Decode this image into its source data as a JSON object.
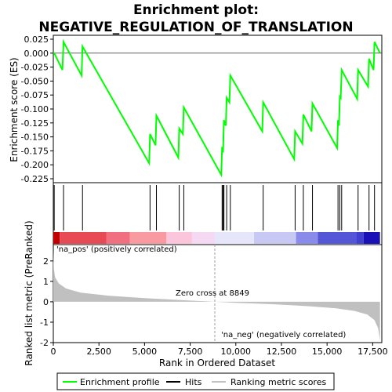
{
  "chart_data": {
    "type": "line",
    "title_lines": [
      "Enrichment plot:",
      "NEGATIVE_REGULATION_OF_TRANSLATION"
    ],
    "xlabel": "Rank in Ordered Dataset",
    "ylabel_top": "Enrichment score (ES)",
    "ylabel_bottom": "Ranked list metric (PreRanked)",
    "xlim": [
      0,
      18000
    ],
    "x_ticks": [
      0,
      2500,
      5000,
      7500,
      10000,
      12500,
      15000,
      17500
    ],
    "x_tick_labels": [
      "0",
      "2,500",
      "5,000",
      "7,500",
      "10,000",
      "12,500",
      "15,000",
      "17,500"
    ],
    "es_ylim": [
      -0.225,
      0.025
    ],
    "es_ticks": [
      0.025,
      0.0,
      -0.025,
      -0.05,
      -0.075,
      -0.1,
      -0.125,
      -0.15,
      -0.175,
      -0.2,
      -0.225
    ],
    "es_tick_labels": [
      "0.025",
      "0.000",
      "-0.025",
      "-0.050",
      "-0.075",
      "-0.100",
      "-0.125",
      "-0.150",
      "-0.175",
      "-0.200",
      "-0.225"
    ],
    "metric_ylim": [
      -2,
      2.8
    ],
    "metric_ticks": [
      2,
      1,
      0,
      -1,
      -2
    ],
    "metric_tick_labels": [
      "2",
      "1",
      "0",
      "-1",
      "-2"
    ],
    "total_genes": 17900,
    "zero_cross": 8849,
    "zero_cross_label": "Zero cross at 8849",
    "pos_label": "'na_pos' (positively correlated)",
    "neg_label": "'na_neg' (negatively correlated)",
    "hits": [
      50,
      560,
      1600,
      5300,
      5650,
      6900,
      7150,
      9250,
      9300,
      9350,
      9500,
      9700,
      11500,
      13250,
      13700,
      14200,
      15600,
      15700,
      15800,
      16700,
      17300,
      17600
    ],
    "enrichment_profile": {
      "x": [
        0,
        50,
        500,
        560,
        1550,
        1600,
        5250,
        5300,
        5600,
        5650,
        6850,
        6900,
        7100,
        7150,
        9200,
        9250,
        9300,
        9350,
        9450,
        9500,
        9650,
        9700,
        11450,
        11500,
        13200,
        13250,
        13650,
        13700,
        14150,
        14200,
        15550,
        15600,
        15650,
        15700,
        15750,
        15800,
        16650,
        16700,
        17250,
        17300,
        17550,
        17600,
        17900
      ],
      "y": [
        0.0,
        0.0,
        -0.03,
        0.02,
        -0.04,
        0.012,
        -0.197,
        -0.145,
        -0.165,
        -0.112,
        -0.187,
        -0.135,
        -0.145,
        -0.097,
        -0.218,
        -0.168,
        -0.178,
        -0.12,
        -0.13,
        -0.08,
        -0.088,
        -0.04,
        -0.14,
        -0.088,
        -0.19,
        -0.14,
        -0.162,
        -0.11,
        -0.14,
        -0.09,
        -0.17,
        -0.12,
        -0.13,
        -0.078,
        -0.08,
        -0.03,
        -0.082,
        -0.03,
        -0.06,
        -0.01,
        -0.03,
        0.02,
        0.0
      ]
    },
    "metric_curve": {
      "x": [
        0,
        30,
        100,
        300,
        700,
        1500,
        3000,
        5000,
        7000,
        8849,
        10000,
        12000,
        14000,
        15500,
        16500,
        17200,
        17600,
        17800,
        17900
      ],
      "y": [
        2.5,
        1.6,
        1.2,
        0.9,
        0.65,
        0.45,
        0.3,
        0.18,
        0.08,
        0.0,
        -0.05,
        -0.12,
        -0.22,
        -0.32,
        -0.45,
        -0.62,
        -0.9,
        -1.3,
        -1.9
      ]
    },
    "heat_segments": [
      {
        "start": 0,
        "end": 350,
        "color": "#c00000"
      },
      {
        "start": 350,
        "end": 2900,
        "color": "#e84a55"
      },
      {
        "start": 2900,
        "end": 4200,
        "color": "#f07080"
      },
      {
        "start": 4200,
        "end": 6200,
        "color": "#f89aa0"
      },
      {
        "start": 6200,
        "end": 7600,
        "color": "#fbc5dc"
      },
      {
        "start": 7600,
        "end": 8849,
        "color": "#f5d9f2"
      },
      {
        "start": 8849,
        "end": 11000,
        "color": "#e6e6fa"
      },
      {
        "start": 11000,
        "end": 13300,
        "color": "#c8c8f5"
      },
      {
        "start": 13300,
        "end": 14500,
        "color": "#8a8aea"
      },
      {
        "start": 14500,
        "end": 16600,
        "color": "#5555d8"
      },
      {
        "start": 16600,
        "end": 17000,
        "color": "#4040d0"
      },
      {
        "start": 17000,
        "end": 17900,
        "color": "#1a10b8"
      }
    ],
    "colors": {
      "profile": "#00ff00",
      "hit": "#000000",
      "metric_fill": "#c0c0c0",
      "zero_line": "#a0a0a0"
    },
    "legend": {
      "profile_label": "Enrichment profile",
      "hits_label": "Hits",
      "metric_label": "Ranking metric scores"
    }
  }
}
